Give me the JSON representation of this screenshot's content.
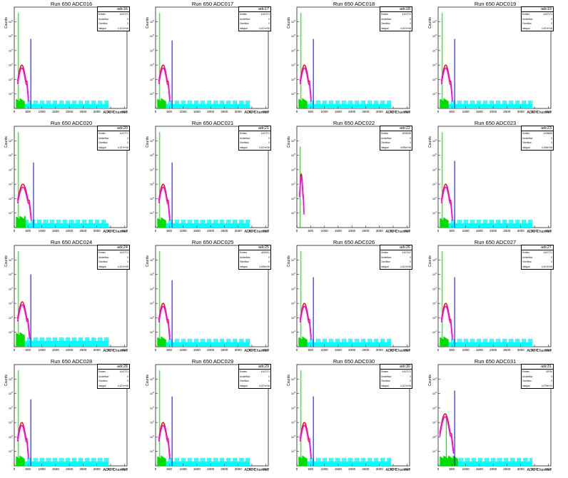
{
  "run_label": "Run 650",
  "stats_labels": {
    "entries": "Entries",
    "underflow": "Underflow",
    "overflow": "Overflow",
    "integral": "Integral"
  },
  "colors": {
    "hist": "#ff00ff",
    "fit": "#ff0000",
    "pedestal": "#00dd00",
    "tail": "#00ffff",
    "marker": "#0000dd"
  },
  "panels": [
    {
      "title": "Run 650 ADC016",
      "stat": "adc16",
      "entries": "4107271",
      "underflow": "0",
      "overflow": "0",
      "integral": "4.107e+06",
      "xlabel": "ADC Channel",
      "ylabel": "Counts"
    },
    {
      "title": "Run 650 ADC017",
      "stat": "adc17",
      "entries": "4107271",
      "underflow": "0",
      "overflow": "0",
      "integral": "4.107e+06",
      "xlabel": "ADC Channel",
      "ylabel": "Counts"
    },
    {
      "title": "Run 650 ADC018",
      "stat": "adc18",
      "entries": "4107271",
      "underflow": "0",
      "overflow": "0",
      "integral": "4.107e+06",
      "xlabel": "ADC Channel",
      "ylabel": "Counts"
    },
    {
      "title": "Run 650 ADC019",
      "stat": "adc19",
      "entries": "4107271",
      "underflow": "0",
      "overflow": "0",
      "integral": "4.107e+06",
      "xlabel": "ADC Channel",
      "ylabel": "Counts"
    },
    {
      "title": "Run 650 ADC020",
      "stat": "adc20",
      "entries": "4107271",
      "underflow": "0",
      "overflow": "0",
      "integral": "4.107e+06",
      "xlabel": "ADC Channel",
      "ylabel": "Counts"
    },
    {
      "title": "Run 650 ADC021",
      "stat": "adc21",
      "entries": "4107271",
      "underflow": "0",
      "overflow": "0",
      "integral": "4.107e+06",
      "xlabel": "ADC Channel",
      "ylabel": "Counts"
    },
    {
      "title": "Run 650 ADC022",
      "stat": "adc22",
      "entries": "4099045",
      "underflow": "0",
      "overflow": "0",
      "integral": "4.099e+06",
      "xlabel": "ADC Channel",
      "ylabel": "Counts"
    },
    {
      "title": "Run 650 ADC023",
      "stat": "adc23",
      "entries": "4105835",
      "underflow": "0",
      "overflow": "0",
      "integral": "4.106e+06",
      "xlabel": "ADC Channel",
      "ylabel": "Counts"
    },
    {
      "title": "Run 650 ADC024",
      "stat": "adc24",
      "entries": "4107271",
      "underflow": "0",
      "overflow": "0",
      "integral": "4.107e+06",
      "xlabel": "ADC Channel",
      "ylabel": "Counts"
    },
    {
      "title": "Run 650 ADC025",
      "stat": "adc25",
      "entries": "4106211",
      "underflow": "0",
      "overflow": "0",
      "integral": "4.106e+06",
      "xlabel": "ADC Channel",
      "ylabel": "Counts"
    },
    {
      "title": "Run 650 ADC026",
      "stat": "adc26",
      "entries": "4107167",
      "underflow": "0",
      "overflow": "0",
      "integral": "4.107e+06",
      "xlabel": "ADC Channel",
      "ylabel": "Counts"
    },
    {
      "title": "Run 650 ADC027",
      "stat": "adc27",
      "entries": "4107271",
      "underflow": "0",
      "overflow": "0",
      "integral": "4.107e+06",
      "xlabel": "ADC Channel",
      "ylabel": "Counts"
    },
    {
      "title": "Run 650 ADC028",
      "stat": "adc28",
      "entries": "4107271",
      "underflow": "0",
      "overflow": "0",
      "integral": "4.107e+06",
      "xlabel": "ADC Channel",
      "ylabel": "Counts"
    },
    {
      "title": "Run 650 ADC029",
      "stat": "adc29",
      "entries": "4107271",
      "underflow": "0",
      "overflow": "0",
      "integral": "4.107e+06",
      "xlabel": "ADC Channel",
      "ylabel": "Counts"
    },
    {
      "title": "Run 650 ADC030",
      "stat": "adc30",
      "entries": "4107271",
      "underflow": "0",
      "overflow": "0",
      "integral": "4.107e+06",
      "xlabel": "ADC Channel",
      "ylabel": "Counts"
    },
    {
      "title": "Run 650 ADC031",
      "stat": "adc31",
      "entries": "40790",
      "underflow": "0",
      "overflow": "0",
      "integral": "4.079e+04",
      "xlabel": "ADC Channel",
      "ylabel": "Counts"
    }
  ],
  "chart_data": {
    "type": "histogram",
    "xlabel": "ADC Channel",
    "ylabel": "Counts",
    "x_ticks": [
      0,
      500,
      1000,
      1500,
      2000,
      2500,
      3000,
      3500,
      4000
    ],
    "xlim": [
      0,
      4096
    ],
    "y_scale": "log",
    "y_ticks_exponents": [
      1,
      2,
      3,
      4,
      5,
      6
    ],
    "panel_shapes": [
      {
        "peak_x": 150,
        "peak_log": 6.6,
        "marker_x": 600,
        "marker_log": 4.8,
        "bump_x": [
          120,
          520
        ],
        "bump_log": 2.8,
        "ped_x": [
          60,
          360
        ],
        "ped_log": 0.3,
        "tail_x": [
          360,
          3400
        ],
        "tail_log": 0.3
      },
      {
        "peak_x": 150,
        "peak_log": 6.6,
        "marker_x": 600,
        "marker_log": 4.7,
        "bump_x": [
          120,
          520
        ],
        "bump_log": 2.8,
        "ped_x": [
          60,
          360
        ],
        "ped_log": 0.3,
        "tail_x": [
          360,
          3400
        ],
        "tail_log": 0.3
      },
      {
        "peak_x": 150,
        "peak_log": 6.6,
        "marker_x": 600,
        "marker_log": 4.8,
        "bump_x": [
          120,
          520
        ],
        "bump_log": 2.8,
        "ped_x": [
          60,
          360
        ],
        "ped_log": 0.3,
        "tail_x": [
          360,
          3400
        ],
        "tail_log": 0.3
      },
      {
        "peak_x": 150,
        "peak_log": 6.6,
        "marker_x": 600,
        "marker_log": 4.8,
        "bump_x": [
          120,
          520
        ],
        "bump_log": 2.8,
        "ped_x": [
          60,
          360
        ],
        "ped_log": 0.3,
        "tail_x": [
          360,
          3400
        ],
        "tail_log": 0.3
      },
      {
        "peak_x": 150,
        "peak_log": 6.6,
        "marker_x": 700,
        "marker_log": 4.5,
        "bump_x": [
          120,
          620
        ],
        "bump_log": 2.8,
        "ped_x": [
          60,
          400
        ],
        "ped_log": 0.4,
        "tail_x": [
          400,
          3400
        ],
        "tail_log": 0.3
      },
      {
        "peak_x": 150,
        "peak_log": 6.6,
        "marker_x": 600,
        "marker_log": 4.5,
        "bump_x": [
          120,
          520
        ],
        "bump_log": 2.8,
        "ped_x": [
          60,
          360
        ],
        "ped_log": 0.3,
        "tail_x": [
          360,
          3400
        ],
        "tail_log": 0.3
      },
      {
        "peak_x": 120,
        "peak_log": 5.6,
        "marker_x": 0,
        "marker_log": 0,
        "bump_x": [
          100,
          260
        ],
        "bump_log": 3.5,
        "ped_x": [
          0,
          0
        ],
        "ped_log": 0,
        "tail_x": [
          0,
          0
        ],
        "tail_log": 0
      },
      {
        "peak_x": 150,
        "peak_log": 6.6,
        "marker_x": 600,
        "marker_log": 4.6,
        "bump_x": [
          120,
          520
        ],
        "bump_log": 2.8,
        "ped_x": [
          60,
          360
        ],
        "ped_log": 0.3,
        "tail_x": [
          360,
          3400
        ],
        "tail_log": 0.3
      },
      {
        "peak_x": 150,
        "peak_log": 6.6,
        "marker_x": 600,
        "marker_log": 5.0,
        "bump_x": [
          120,
          560
        ],
        "bump_log": 2.9,
        "ped_x": [
          60,
          360
        ],
        "ped_log": 0.6,
        "tail_x": [
          360,
          3400
        ],
        "tail_log": 0.4
      },
      {
        "peak_x": 150,
        "peak_log": 6.6,
        "marker_x": 600,
        "marker_log": 4.6,
        "bump_x": [
          120,
          520
        ],
        "bump_log": 2.8,
        "ped_x": [
          60,
          360
        ],
        "ped_log": 0.3,
        "tail_x": [
          360,
          3400
        ],
        "tail_log": 0.3
      },
      {
        "peak_x": 150,
        "peak_log": 6.6,
        "marker_x": 600,
        "marker_log": 4.8,
        "bump_x": [
          120,
          520
        ],
        "bump_log": 2.8,
        "ped_x": [
          60,
          360
        ],
        "ped_log": 0.3,
        "tail_x": [
          360,
          3400
        ],
        "tail_log": 0.3
      },
      {
        "peak_x": 150,
        "peak_log": 6.6,
        "marker_x": 600,
        "marker_log": 4.8,
        "bump_x": [
          120,
          520
        ],
        "bump_log": 2.8,
        "ped_x": [
          60,
          360
        ],
        "ped_log": 0.3,
        "tail_x": [
          360,
          3400
        ],
        "tail_log": 0.3
      },
      {
        "peak_x": 150,
        "peak_log": 6.6,
        "marker_x": 600,
        "marker_log": 4.6,
        "bump_x": [
          120,
          520
        ],
        "bump_log": 2.8,
        "ped_x": [
          60,
          360
        ],
        "ped_log": 0.3,
        "tail_x": [
          360,
          3400
        ],
        "tail_log": 0.3
      },
      {
        "peak_x": 150,
        "peak_log": 6.6,
        "marker_x": 600,
        "marker_log": 4.8,
        "bump_x": [
          120,
          520
        ],
        "bump_log": 2.8,
        "ped_x": [
          60,
          360
        ],
        "ped_log": 0.3,
        "tail_x": [
          360,
          3400
        ],
        "tail_log": 0.3
      },
      {
        "peak_x": 150,
        "peak_log": 6.6,
        "marker_x": 600,
        "marker_log": 4.8,
        "bump_x": [
          120,
          520
        ],
        "bump_log": 2.8,
        "ped_x": [
          60,
          360
        ],
        "ped_log": 0.3,
        "tail_x": [
          360,
          3400
        ],
        "tail_log": 0.3
      },
      {
        "peak_x": 300,
        "peak_log": 3.6,
        "marker_x": 600,
        "marker_log": 5.2,
        "bump_x": [
          60,
          560
        ],
        "bump_log": 3.4,
        "ped_x": [
          60,
          700
        ],
        "ped_log": 0.3,
        "tail_x": [
          700,
          3400
        ],
        "tail_log": 0.3
      }
    ]
  }
}
